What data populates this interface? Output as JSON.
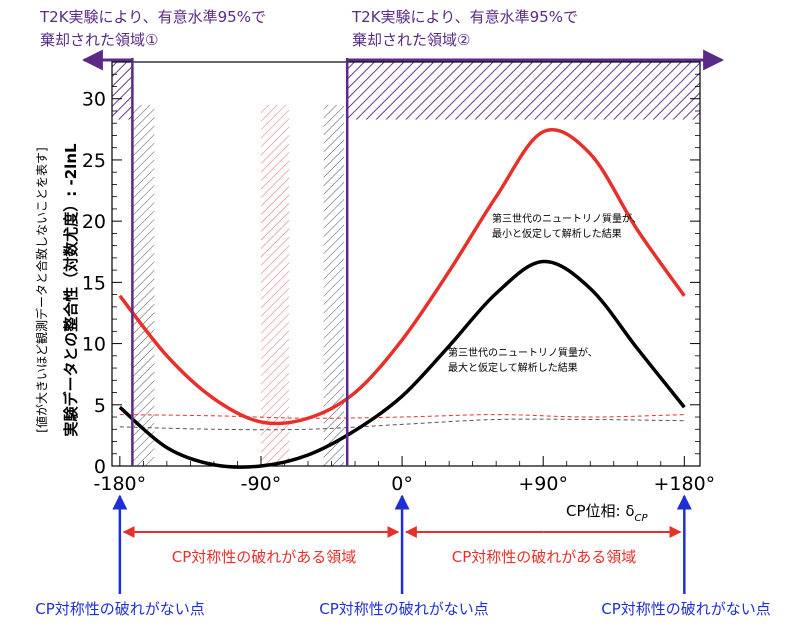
{
  "header": {
    "excluded_region_1_label_line1": "T2K実験により、有意水準95%で",
    "excluded_region_1_label_line2": "棄却された領域①",
    "excluded_region_2_label_line1": "T2K実験により、有意水準95%で",
    "excluded_region_2_label_line2": "棄却された領域②"
  },
  "colors": {
    "red": "#e8302a",
    "black": "#000000",
    "purple": "#5b2a86",
    "hatch_purple": "#6a3a9a",
    "blue": "#1f2fd6",
    "grey_hatch": "#555555",
    "red_hatch": "#e86a6a"
  },
  "chart_data": {
    "type": "line",
    "x_unit_label": "CP位相: δ",
    "x_unit_subscript": "CP",
    "ylabel_line1": "実験データとの整合性（対数尤度）: -2lnL",
    "ylabel_line2": "[値が大きいほど観測データと合致しないことを表す]",
    "xlim": [
      -185,
      190
    ],
    "ylim": [
      0,
      33
    ],
    "x_ticks": [
      {
        "value": -180,
        "label": "-180°"
      },
      {
        "value": -90,
        "label": "-90°"
      },
      {
        "value": 0,
        "label": "0°"
      },
      {
        "value": 90,
        "label": "+90°"
      },
      {
        "value": 180,
        "label": "+180°"
      }
    ],
    "y_ticks": [
      {
        "value": 0,
        "label": "0"
      },
      {
        "value": 5,
        "label": "5"
      },
      {
        "value": 10,
        "label": "10"
      },
      {
        "value": 15,
        "label": "15"
      },
      {
        "value": 20,
        "label": "20"
      },
      {
        "value": 25,
        "label": "25"
      },
      {
        "value": 30,
        "label": "30"
      }
    ],
    "series": [
      {
        "name": "第三世代のニュートリノ質量が、最小と仮定して解析した結果",
        "color": "#e8302a",
        "x": [
          -180,
          -150,
          -120,
          -90,
          -60,
          -30,
          0,
          30,
          60,
          90,
          120,
          150,
          180
        ],
        "y": [
          13.9,
          9.0,
          5.5,
          3.6,
          3.9,
          6.0,
          10.3,
          15.9,
          22.0,
          27.3,
          25.5,
          19.3,
          13.9
        ]
      },
      {
        "name": "第三世代のニュートリノ質量が、最大と仮定して解析した結果",
        "color": "#000000",
        "x": [
          -180,
          -150,
          -120,
          -90,
          -60,
          -30,
          0,
          30,
          60,
          90,
          120,
          150,
          180
        ],
        "y": [
          4.8,
          1.5,
          0.1,
          0.0,
          0.9,
          2.9,
          5.7,
          9.8,
          14.1,
          16.7,
          14.5,
          9.6,
          4.8
        ]
      }
    ],
    "threshold_lines": [
      {
        "color": "#e8302a",
        "x": [
          -180,
          -120,
          -60,
          0,
          60,
          120,
          180
        ],
        "y": [
          4.2,
          4.1,
          3.9,
          4.0,
          4.2,
          4.0,
          4.2
        ]
      },
      {
        "color": "#555555",
        "x": [
          -180,
          -120,
          -60,
          0,
          60,
          120,
          180
        ],
        "y": [
          3.2,
          3.0,
          3.0,
          3.4,
          3.8,
          3.8,
          3.7
        ]
      }
    ],
    "series_annotations": [
      {
        "line1": "第三世代のニュートリノ質量が、",
        "line2": "最小と仮定して解析した結果"
      },
      {
        "line1": "第三世代のニュートリノ質量が、",
        "line2": "最大と仮定して解析した結果"
      }
    ],
    "excluded_regions": [
      {
        "x_range": [
          -185,
          -172
        ]
      },
      {
        "x_range": [
          -35,
          190
        ]
      }
    ],
    "hatched_bands": [
      {
        "x_range": [
          -172,
          -158
        ],
        "color": "grey"
      },
      {
        "x_range": [
          -90,
          -72
        ],
        "color": "red"
      },
      {
        "x_range": [
          -50,
          -37
        ],
        "color": "grey"
      }
    ],
    "annotations": {
      "broken_region_label": "CP対称性の破れがある領域",
      "no_violation_label": "CP対称性の破れがない点"
    },
    "no_violation_points": [
      -180,
      0,
      180
    ],
    "grid": false
  }
}
